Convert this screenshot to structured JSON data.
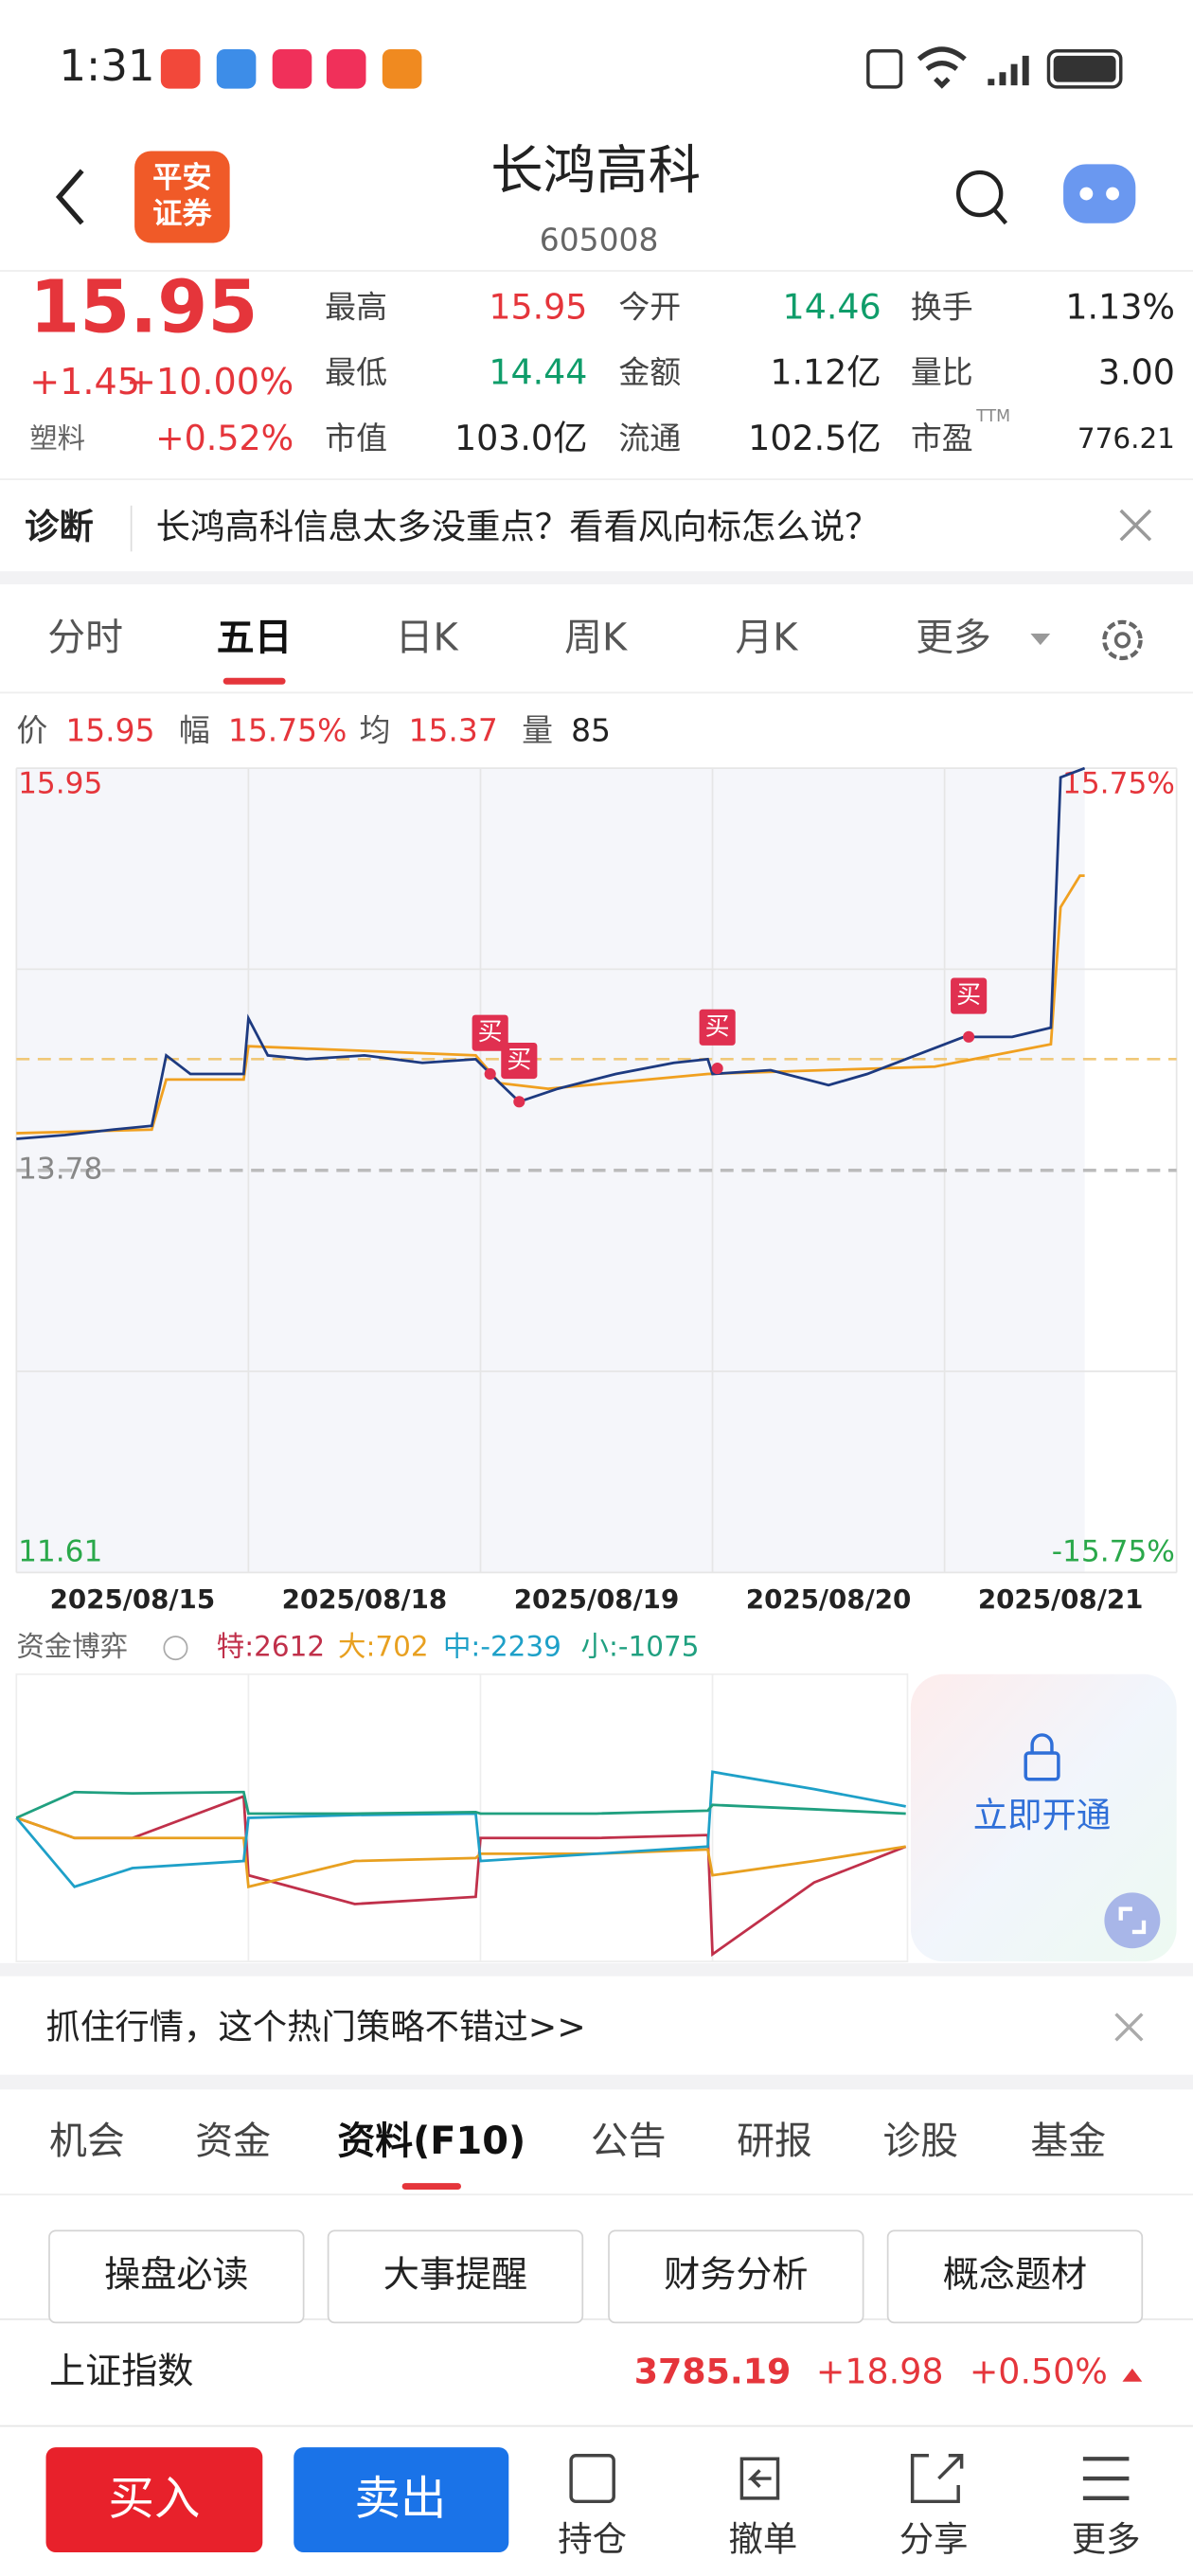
{
  "status": {
    "time": "1:31"
  },
  "header": {
    "title": "长鸿高科",
    "code": "605008",
    "logo": [
      "平安",
      "证券"
    ]
  },
  "quote": {
    "price": "15.95",
    "change": "+1.45",
    "pct": "+10.00%",
    "sector": "塑料",
    "sector_pct": "+0.52%",
    "stats": [
      {
        "label": "最高",
        "value": "15.95",
        "color": "#e5353b"
      },
      {
        "label": "今开",
        "value": "14.46",
        "color": "#0f9d6a"
      },
      {
        "label": "换手",
        "value": "1.13%",
        "color": "#222"
      },
      {
        "label": "最低",
        "value": "14.44",
        "color": "#0f9d6a"
      },
      {
        "label": "金额",
        "value": "1.12亿",
        "color": "#222"
      },
      {
        "label": "量比",
        "value": "3.00",
        "color": "#222"
      },
      {
        "label": "市值",
        "value": "103.0亿",
        "color": "#222"
      },
      {
        "label": "流通",
        "value": "102.5亿",
        "color": "#222"
      },
      {
        "label": "市盈",
        "sup": "TTM",
        "value": "776.21",
        "color": "#222"
      }
    ]
  },
  "diagnosis": {
    "label": "诊断",
    "text": "长鸿高科信息太多没重点？看看风向标怎么说？"
  },
  "tabs": {
    "items": [
      "分时",
      "五日",
      "日K",
      "周K",
      "月K",
      "更多"
    ],
    "active": 1
  },
  "chart_data": {
    "type": "line",
    "info": [
      {
        "label": "价",
        "value": "15.95",
        "color": "#e5353b"
      },
      {
        "label": "幅",
        "value": "15.75%",
        "color": "#e5353b"
      },
      {
        "label": "均",
        "value": "15.37",
        "color": "#e5353b"
      },
      {
        "label": "量",
        "value": "85",
        "color": "#222"
      }
    ],
    "xlim": [
      0,
      240
    ],
    "ylim": [
      11.61,
      15.95
    ],
    "yticks": [
      15.95,
      13.78,
      11.61
    ],
    "ytick_colors": [
      "#e5353b",
      "#888",
      "#2aa84a"
    ],
    "y2lim": [
      -15.75,
      15.75
    ],
    "y2ticks": [
      {
        "value": 15.75,
        "label": "15.75%"
      },
      {
        "value": -15.75,
        "label": "-15.75%"
      }
    ],
    "y2tick_colors": [
      "#e5353b",
      "#2aa84a"
    ],
    "dates": [
      "2025/08/15",
      "2025/08/18",
      "2025/08/19",
      "2025/08/20",
      "2025/08/21"
    ],
    "avg_reference": 14.38,
    "series": [
      {
        "color": "#1d3a80",
        "x": [
          0,
          10,
          20,
          28,
          31,
          36,
          47,
          48,
          52,
          60,
          72,
          84,
          95,
          100,
          104,
          112,
          124,
          136,
          143,
          144,
          156,
          168,
          176,
          186,
          196,
          206,
          214,
          216,
          221
        ],
        "values": [
          13.95,
          13.97,
          14.0,
          14.02,
          14.4,
          14.3,
          14.3,
          14.6,
          14.4,
          14.38,
          14.4,
          14.36,
          14.38,
          14.25,
          14.15,
          14.22,
          14.3,
          14.36,
          14.38,
          14.3,
          14.32,
          14.24,
          14.3,
          14.4,
          14.5,
          14.5,
          14.55,
          15.9,
          15.95
        ]
      },
      {
        "color": "#f0a020",
        "x": [
          0,
          28,
          31,
          47,
          48,
          95,
          100,
          110,
          143,
          190,
          214,
          216,
          220,
          221
        ],
        "values": [
          13.98,
          14.0,
          14.27,
          14.27,
          14.45,
          14.4,
          14.25,
          14.22,
          14.3,
          14.34,
          14.46,
          15.2,
          15.37,
          15.37
        ]
      }
    ],
    "buy_signals": [
      {
        "x": 98,
        "value": 14.3,
        "label": "买"
      },
      {
        "x": 104,
        "value": 14.15,
        "label": "买"
      },
      {
        "x": 145,
        "value": 14.33,
        "label": "买"
      },
      {
        "x": 197,
        "value": 14.5,
        "label": "买"
      }
    ]
  },
  "fund_flow": {
    "type": "line",
    "title": "资金博弈",
    "xlim": [
      0,
      240
    ],
    "ylim": [
      -100,
      100
    ],
    "x": [
      0,
      12,
      24,
      47,
      48,
      70,
      95,
      96,
      120,
      143,
      144,
      165,
      184
    ],
    "series": [
      {
        "name": "特:2612",
        "color": "#c0304a",
        "values": [
          0,
          -14,
          -14,
          15,
          -40,
          -60,
          -55,
          -14,
          -14,
          -12,
          -95,
          -45,
          -20
        ]
      },
      {
        "name": "大:702",
        "color": "#e8a020",
        "values": [
          0,
          -14,
          -14,
          -14,
          -48,
          -30,
          -28,
          -25,
          -25,
          -22,
          -40,
          -30,
          -20
        ]
      },
      {
        "name": "中:-2239",
        "color": "#1ea0c8",
        "values": [
          0,
          -48,
          -35,
          -30,
          0,
          2,
          3,
          -30,
          -25,
          -20,
          32,
          20,
          8
        ]
      },
      {
        "name": "小:-1075",
        "color": "#20a080",
        "values": [
          0,
          18,
          17,
          18,
          3,
          3,
          4,
          3,
          3,
          5,
          9,
          6,
          3
        ]
      }
    ],
    "locked_text": "立即开通"
  },
  "banner": {
    "text": "抓住行情，这个热门策略不错过>>"
  },
  "subtabs": {
    "items": [
      "机会",
      "资金",
      "资料(F10)",
      "公告",
      "研报",
      "诊股",
      "基金"
    ],
    "active": 2
  },
  "buttons": [
    "操盘必读",
    "大事提醒",
    "财务分析",
    "概念题材"
  ],
  "index": {
    "name": "上证指数",
    "value": "3785.19",
    "change": "+18.98",
    "pct": "+0.50%"
  },
  "bottom": {
    "buy": "买入",
    "sell": "卖出",
    "items": [
      "持仓",
      "撤单",
      "分享",
      "更多"
    ]
  }
}
